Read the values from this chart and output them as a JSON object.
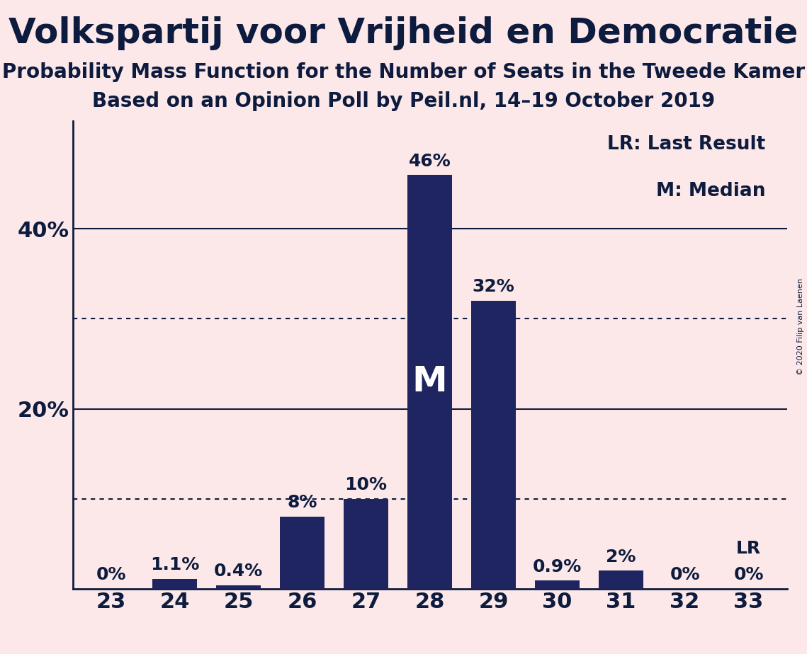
{
  "title": "Volkspartij voor Vrijheid en Democratie",
  "subtitle1": "Probability Mass Function for the Number of Seats in the Tweede Kamer",
  "subtitle2": "Based on an Opinion Poll by Peil.nl, 14–19 October 2019",
  "copyright": "© 2020 Filip van Laenen",
  "categories": [
    23,
    24,
    25,
    26,
    27,
    28,
    29,
    30,
    31,
    32,
    33
  ],
  "values": [
    0.0,
    1.1,
    0.4,
    8.0,
    10.0,
    46.0,
    32.0,
    0.9,
    2.0,
    0.0,
    0.0
  ],
  "bar_labels": [
    "0%",
    "1.1%",
    "0.4%",
    "8%",
    "10%",
    "46%",
    "32%",
    "0.9%",
    "2%",
    "0%",
    "0%"
  ],
  "bar_color": "#1e2560",
  "background_color": "#fce8e8",
  "label_color": "#0d1b3e",
  "title_color": "#0d1b3e",
  "median_index": 5,
  "median_label": "M",
  "lr_index": 10,
  "lr_label": "LR",
  "legend_lr": "LR: Last Result",
  "legend_m": "M: Median",
  "solid_gridlines": [
    20,
    40
  ],
  "dotted_gridlines": [
    10,
    30
  ],
  "ylim": [
    0,
    52
  ],
  "bar_label_fontsize": 18,
  "axis_fontsize": 22,
  "title_fontsize": 36,
  "subtitle_fontsize": 20
}
